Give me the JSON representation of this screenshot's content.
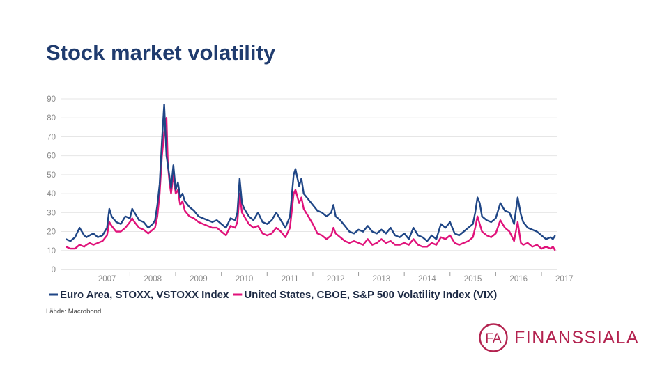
{
  "slide": {
    "title": "Stock market volatility",
    "source": "Lähde: Macrobond"
  },
  "logo": {
    "monogram": "FA",
    "text": "FINANSSIALA",
    "color": "#b3224f"
  },
  "colors": {
    "stoxx": "#1f4686",
    "vix": "#e0127a",
    "grid": "#e6e6e6"
  },
  "chart_data": {
    "type": "line",
    "title": "",
    "xlabel": "",
    "ylabel": "",
    "ylim": [
      0,
      90
    ],
    "yticks": [
      "0",
      "10",
      "20",
      "30",
      "40",
      "50",
      "60",
      "70",
      "80",
      "90"
    ],
    "xlim": [
      2006.5,
      2017.35
    ],
    "xtick_labels": [
      "2007",
      "2008",
      "2009",
      "2010",
      "2011",
      "2012",
      "2013",
      "2014",
      "2015",
      "2016",
      "2017"
    ],
    "grid": true,
    "legend_position": "bottom",
    "series": [
      {
        "name": "Euro Area, STOXX, VSTOXX Index",
        "color": "#1f4686",
        "x": [
          2006.6,
          2006.7,
          2006.8,
          2006.9,
          2007.0,
          2007.05,
          2007.12,
          2007.2,
          2007.3,
          2007.4,
          2007.5,
          2007.55,
          2007.6,
          2007.7,
          2007.8,
          2007.9,
          2008.0,
          2008.05,
          2008.1,
          2008.2,
          2008.3,
          2008.4,
          2008.5,
          2008.55,
          2008.6,
          2008.65,
          2008.7,
          2008.75,
          2008.8,
          2008.83,
          2008.87,
          2008.9,
          2008.95,
          2009.0,
          2009.05,
          2009.1,
          2009.15,
          2009.2,
          2009.3,
          2009.4,
          2009.5,
          2009.6,
          2009.7,
          2009.8,
          2009.9,
          2010.0,
          2010.1,
          2010.2,
          2010.3,
          2010.35,
          2010.4,
          2010.45,
          2010.5,
          2010.6,
          2010.7,
          2010.8,
          2010.9,
          2011.0,
          2011.1,
          2011.2,
          2011.3,
          2011.4,
          2011.5,
          2011.58,
          2011.62,
          2011.7,
          2011.75,
          2011.8,
          2011.9,
          2012.0,
          2012.1,
          2012.2,
          2012.3,
          2012.4,
          2012.45,
          2012.5,
          2012.6,
          2012.7,
          2012.8,
          2012.9,
          2013.0,
          2013.1,
          2013.2,
          2013.3,
          2013.4,
          2013.5,
          2013.6,
          2013.7,
          2013.8,
          2013.9,
          2014.0,
          2014.1,
          2014.2,
          2014.3,
          2014.4,
          2014.5,
          2014.6,
          2014.7,
          2014.8,
          2014.9,
          2015.0,
          2015.1,
          2015.2,
          2015.3,
          2015.4,
          2015.5,
          2015.55,
          2015.6,
          2015.65,
          2015.7,
          2015.8,
          2015.9,
          2016.0,
          2016.1,
          2016.2,
          2016.3,
          2016.4,
          2016.48,
          2016.55,
          2016.6,
          2016.7,
          2016.8,
          2016.9,
          2017.0,
          2017.1,
          2017.2,
          2017.25,
          2017.3
        ],
        "values": [
          16,
          15,
          17,
          22,
          18,
          17,
          18,
          19,
          17,
          18,
          22,
          32,
          28,
          25,
          24,
          28,
          27,
          32,
          30,
          26,
          25,
          22,
          24,
          26,
          34,
          45,
          68,
          87,
          60,
          55,
          48,
          43,
          55,
          42,
          46,
          38,
          40,
          36,
          33,
          31,
          28,
          27,
          26,
          25,
          26,
          24,
          22,
          27,
          26,
          30,
          48,
          35,
          32,
          28,
          26,
          30,
          25,
          24,
          26,
          30,
          26,
          22,
          28,
          50,
          53,
          44,
          48,
          40,
          37,
          34,
          31,
          30,
          28,
          30,
          34,
          28,
          26,
          23,
          20,
          19,
          21,
          20,
          23,
          20,
          19,
          21,
          19,
          22,
          18,
          17,
          19,
          16,
          22,
          18,
          17,
          15,
          18,
          16,
          24,
          22,
          25,
          19,
          18,
          20,
          22,
          24,
          30,
          38,
          35,
          28,
          26,
          25,
          27,
          35,
          31,
          30,
          24,
          38,
          29,
          25,
          22,
          21,
          20,
          18,
          16,
          17,
          16,
          18
        ]
      },
      {
        "name": "United States, CBOE, S&P 500 Volatility Index (VIX)",
        "color": "#e0127a",
        "x": [
          2006.6,
          2006.7,
          2006.8,
          2006.9,
          2007.0,
          2007.05,
          2007.12,
          2007.2,
          2007.3,
          2007.4,
          2007.5,
          2007.55,
          2007.6,
          2007.7,
          2007.8,
          2007.9,
          2008.0,
          2008.05,
          2008.1,
          2008.2,
          2008.3,
          2008.4,
          2008.5,
          2008.55,
          2008.6,
          2008.65,
          2008.7,
          2008.75,
          2008.8,
          2008.83,
          2008.87,
          2008.9,
          2008.95,
          2009.0,
          2009.05,
          2009.1,
          2009.15,
          2009.2,
          2009.3,
          2009.4,
          2009.5,
          2009.6,
          2009.7,
          2009.8,
          2009.9,
          2010.0,
          2010.1,
          2010.2,
          2010.3,
          2010.35,
          2010.4,
          2010.45,
          2010.5,
          2010.6,
          2010.7,
          2010.8,
          2010.9,
          2011.0,
          2011.1,
          2011.2,
          2011.3,
          2011.4,
          2011.5,
          2011.58,
          2011.62,
          2011.7,
          2011.75,
          2011.8,
          2011.9,
          2012.0,
          2012.1,
          2012.2,
          2012.3,
          2012.4,
          2012.45,
          2012.5,
          2012.6,
          2012.7,
          2012.8,
          2012.9,
          2013.0,
          2013.1,
          2013.2,
          2013.3,
          2013.4,
          2013.5,
          2013.6,
          2013.7,
          2013.8,
          2013.9,
          2014.0,
          2014.1,
          2014.2,
          2014.3,
          2014.4,
          2014.5,
          2014.6,
          2014.7,
          2014.8,
          2014.9,
          2015.0,
          2015.1,
          2015.2,
          2015.3,
          2015.4,
          2015.5,
          2015.55,
          2015.6,
          2015.65,
          2015.7,
          2015.8,
          2015.9,
          2016.0,
          2016.1,
          2016.2,
          2016.3,
          2016.4,
          2016.48,
          2016.55,
          2016.6,
          2016.7,
          2016.8,
          2016.9,
          2017.0,
          2017.1,
          2017.2,
          2017.25,
          2017.3
        ],
        "values": [
          12,
          11,
          11,
          13,
          12,
          13,
          14,
          13,
          14,
          15,
          18,
          25,
          23,
          20,
          20,
          22,
          25,
          27,
          25,
          22,
          21,
          19,
          21,
          22,
          28,
          40,
          60,
          72,
          80,
          55,
          45,
          40,
          50,
          40,
          42,
          34,
          36,
          31,
          28,
          27,
          25,
          24,
          23,
          22,
          22,
          20,
          18,
          23,
          22,
          25,
          40,
          30,
          28,
          24,
          22,
          23,
          19,
          18,
          19,
          22,
          20,
          17,
          22,
          40,
          42,
          35,
          38,
          32,
          28,
          24,
          19,
          18,
          16,
          18,
          22,
          19,
          17,
          15,
          14,
          15,
          14,
          13,
          16,
          13,
          14,
          16,
          14,
          15,
          13,
          13,
          14,
          13,
          16,
          13,
          12,
          12,
          14,
          13,
          17,
          16,
          18,
          14,
          13,
          14,
          15,
          17,
          22,
          28,
          24,
          20,
          18,
          17,
          19,
          26,
          22,
          20,
          15,
          25,
          14,
          13,
          14,
          12,
          13,
          11,
          12,
          11,
          12,
          10
        ]
      }
    ]
  }
}
